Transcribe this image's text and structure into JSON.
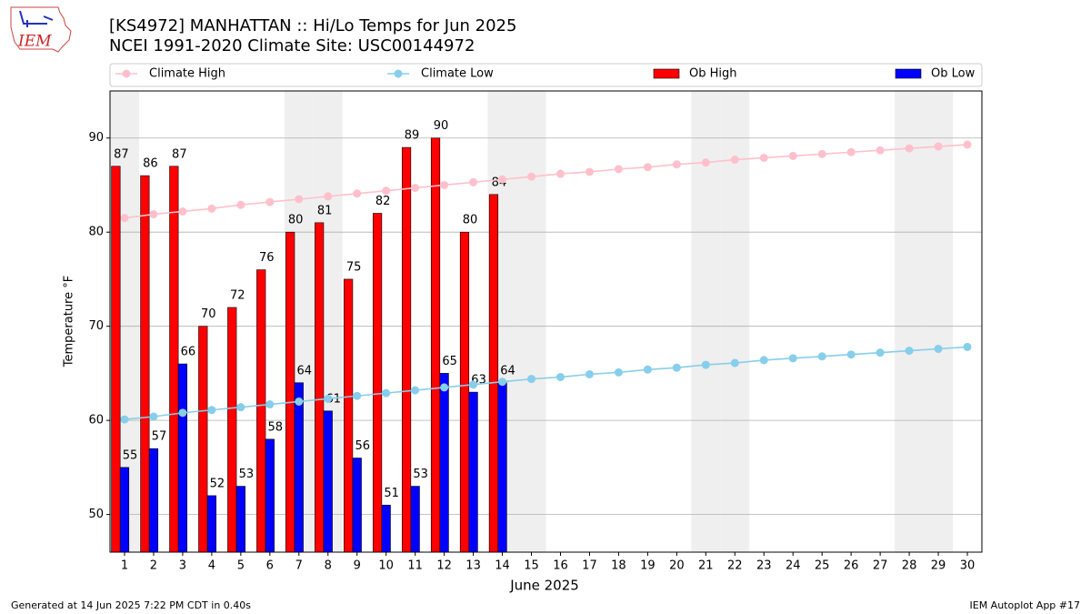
{
  "chart_data": {
    "type": "bar",
    "title": "[KS4972] MANHATTAN :: Hi/Lo Temps for Jun 2025",
    "subtitle": "NCEI 1991-2020 Climate Site: USC00144972",
    "logo_text": "IEM",
    "x_label": "June 2025",
    "y_label": "Temperature °F",
    "footer_left": "Generated at 14 Jun 2025 7:22 PM CDT in 0.40s",
    "footer_right": "IEM Autoplot App #17",
    "x": [
      1,
      2,
      3,
      4,
      5,
      6,
      7,
      8,
      9,
      10,
      11,
      12,
      13,
      14,
      15,
      16,
      17,
      18,
      19,
      20,
      21,
      22,
      23,
      24,
      25,
      26,
      27,
      28,
      29,
      30
    ],
    "xlim": [
      0.5,
      30.5
    ],
    "xticks": [
      1,
      2,
      3,
      4,
      5,
      6,
      7,
      8,
      9,
      10,
      11,
      12,
      13,
      14,
      15,
      16,
      17,
      18,
      19,
      20,
      21,
      22,
      23,
      24,
      25,
      26,
      27,
      28,
      29,
      30
    ],
    "ylim": [
      46,
      95
    ],
    "yticks": [
      50,
      60,
      70,
      80,
      90
    ],
    "grid": true,
    "shaded_days": [
      1,
      7,
      8,
      14,
      15,
      21,
      22,
      28,
      29
    ],
    "series": [
      {
        "name": "Climate High",
        "kind": "line",
        "color": "#ffc0cb",
        "values": [
          81.5,
          81.9,
          82.2,
          82.5,
          82.9,
          83.2,
          83.5,
          83.8,
          84.1,
          84.4,
          84.7,
          85.0,
          85.3,
          85.6,
          85.9,
          86.2,
          86.4,
          86.7,
          86.9,
          87.2,
          87.4,
          87.7,
          87.9,
          88.1,
          88.3,
          88.5,
          88.7,
          88.9,
          89.1,
          89.3
        ]
      },
      {
        "name": "Climate Low",
        "kind": "line",
        "color": "#87ceeb",
        "values": [
          60.1,
          60.4,
          60.8,
          61.1,
          61.4,
          61.7,
          62.0,
          62.3,
          62.6,
          62.9,
          63.2,
          63.5,
          63.8,
          64.1,
          64.4,
          64.6,
          64.9,
          65.1,
          65.4,
          65.6,
          65.9,
          66.1,
          66.4,
          66.6,
          66.8,
          67.0,
          67.2,
          67.4,
          67.6,
          67.8
        ]
      },
      {
        "name": "Ob High",
        "kind": "bar",
        "color": "#ff0000",
        "values": [
          87,
          86,
          87,
          70,
          72,
          76,
          80,
          81,
          75,
          82,
          89,
          90,
          80,
          84,
          null,
          null,
          null,
          null,
          null,
          null,
          null,
          null,
          null,
          null,
          null,
          null,
          null,
          null,
          null,
          null
        ]
      },
      {
        "name": "Ob Low",
        "kind": "bar",
        "color": "#0000ff",
        "values": [
          55,
          57,
          66,
          52,
          53,
          58,
          64,
          61,
          56,
          51,
          53,
          65,
          63,
          64,
          null,
          null,
          null,
          null,
          null,
          null,
          null,
          null,
          null,
          null,
          null,
          null,
          null,
          null,
          null,
          null
        ]
      }
    ]
  }
}
